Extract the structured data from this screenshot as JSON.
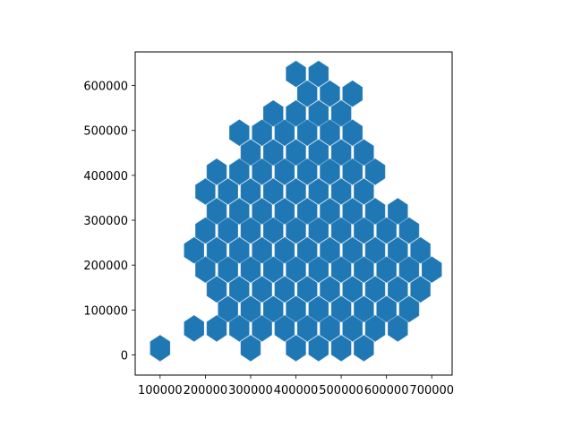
{
  "chart_data": {
    "type": "hexbin",
    "title": "",
    "xlabel": "",
    "ylabel": "",
    "xlim": [
      45000,
      745000
    ],
    "ylim": [
      -45000,
      675000
    ],
    "xticks": [
      100000,
      200000,
      300000,
      400000,
      500000,
      600000,
      700000
    ],
    "yticks": [
      0,
      100000,
      200000,
      300000,
      400000,
      500000,
      600000
    ],
    "xtick_labels": [
      "100000",
      "200000",
      "300000",
      "400000",
      "500000",
      "600000",
      "700000"
    ],
    "ytick_labels": [
      "0",
      "100000",
      "200000",
      "300000",
      "400000",
      "500000",
      "600000"
    ],
    "hex_size": 25000,
    "hex_fill_color": "#1f77b4",
    "hex_edge_color": "#3a88c0",
    "grid": false,
    "legend": "none",
    "hexagon_centers": [
      [
        400000,
        626000
      ],
      [
        450000,
        626000
      ],
      [
        425000,
        582000
      ],
      [
        475000,
        582000
      ],
      [
        525000,
        582000
      ],
      [
        350000,
        538000
      ],
      [
        400000,
        538000
      ],
      [
        450000,
        538000
      ],
      [
        500000,
        538000
      ],
      [
        275000,
        495000
      ],
      [
        325000,
        495000
      ],
      [
        375000,
        495000
      ],
      [
        425000,
        495000
      ],
      [
        475000,
        495000
      ],
      [
        525000,
        495000
      ],
      [
        300000,
        451000
      ],
      [
        350000,
        451000
      ],
      [
        400000,
        451000
      ],
      [
        450000,
        451000
      ],
      [
        500000,
        451000
      ],
      [
        550000,
        451000
      ],
      [
        225000,
        408000
      ],
      [
        275000,
        408000
      ],
      [
        325000,
        408000
      ],
      [
        375000,
        408000
      ],
      [
        425000,
        408000
      ],
      [
        475000,
        408000
      ],
      [
        525000,
        408000
      ],
      [
        575000,
        408000
      ],
      [
        200000,
        364000
      ],
      [
        250000,
        364000
      ],
      [
        300000,
        364000
      ],
      [
        350000,
        364000
      ],
      [
        400000,
        364000
      ],
      [
        450000,
        364000
      ],
      [
        500000,
        364000
      ],
      [
        550000,
        364000
      ],
      [
        225000,
        320000
      ],
      [
        275000,
        320000
      ],
      [
        325000,
        320000
      ],
      [
        375000,
        320000
      ],
      [
        425000,
        320000
      ],
      [
        475000,
        320000
      ],
      [
        525000,
        320000
      ],
      [
        575000,
        320000
      ],
      [
        625000,
        320000
      ],
      [
        200000,
        277000
      ],
      [
        250000,
        277000
      ],
      [
        300000,
        277000
      ],
      [
        350000,
        277000
      ],
      [
        400000,
        277000
      ],
      [
        450000,
        277000
      ],
      [
        500000,
        277000
      ],
      [
        550000,
        277000
      ],
      [
        600000,
        277000
      ],
      [
        650000,
        277000
      ],
      [
        175000,
        233000
      ],
      [
        225000,
        233000
      ],
      [
        275000,
        233000
      ],
      [
        325000,
        233000
      ],
      [
        375000,
        233000
      ],
      [
        425000,
        233000
      ],
      [
        475000,
        233000
      ],
      [
        525000,
        233000
      ],
      [
        575000,
        233000
      ],
      [
        625000,
        233000
      ],
      [
        675000,
        233000
      ],
      [
        200000,
        190000
      ],
      [
        250000,
        190000
      ],
      [
        300000,
        190000
      ],
      [
        350000,
        190000
      ],
      [
        400000,
        190000
      ],
      [
        450000,
        190000
      ],
      [
        500000,
        190000
      ],
      [
        550000,
        190000
      ],
      [
        600000,
        190000
      ],
      [
        650000,
        190000
      ],
      [
        700000,
        190000
      ],
      [
        225000,
        146000
      ],
      [
        275000,
        146000
      ],
      [
        325000,
        146000
      ],
      [
        375000,
        146000
      ],
      [
        425000,
        146000
      ],
      [
        475000,
        146000
      ],
      [
        525000,
        146000
      ],
      [
        575000,
        146000
      ],
      [
        625000,
        146000
      ],
      [
        675000,
        146000
      ],
      [
        250000,
        102000
      ],
      [
        300000,
        102000
      ],
      [
        350000,
        102000
      ],
      [
        400000,
        102000
      ],
      [
        450000,
        102000
      ],
      [
        500000,
        102000
      ],
      [
        550000,
        102000
      ],
      [
        600000,
        102000
      ],
      [
        650000,
        102000
      ],
      [
        175000,
        59000
      ],
      [
        225000,
        59000
      ],
      [
        275000,
        59000
      ],
      [
        325000,
        59000
      ],
      [
        375000,
        59000
      ],
      [
        425000,
        59000
      ],
      [
        475000,
        59000
      ],
      [
        525000,
        59000
      ],
      [
        575000,
        59000
      ],
      [
        625000,
        59000
      ],
      [
        100000,
        15000
      ],
      [
        300000,
        15000
      ],
      [
        400000,
        15000
      ],
      [
        450000,
        15000
      ],
      [
        500000,
        15000
      ],
      [
        550000,
        15000
      ]
    ]
  }
}
